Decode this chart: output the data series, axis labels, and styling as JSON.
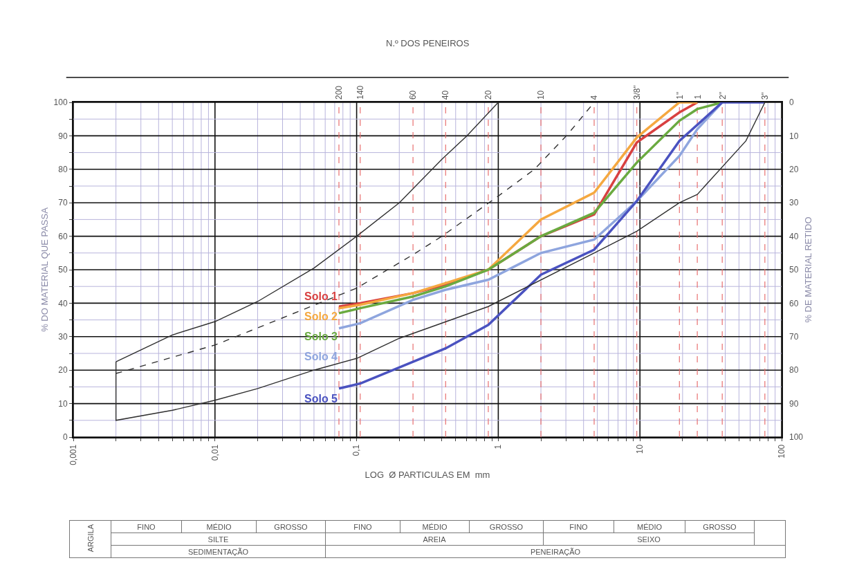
{
  "chart_data": {
    "type": "line",
    "xlabel": "LOG  Ø PARTICULAS EM  mm",
    "ylabel": "% DO MATERIAL QUE PASSA",
    "y2label": "% DE MATERIAL RETIDO",
    "title": "N.º DOS PENEIROS",
    "log": "x",
    "grid": true,
    "legend": false,
    "marker": "none",
    "xlim": [
      0.001,
      100
    ],
    "ylim": [
      0,
      100
    ],
    "y2lim": [
      100,
      0
    ],
    "xticks": [
      {
        "value": 0.001,
        "label": "0,001"
      },
      {
        "value": 0.002,
        "label": null
      },
      {
        "value": 0.003,
        "label": null
      },
      {
        "value": 0.004,
        "label": null
      },
      {
        "value": 0.005,
        "label": null
      },
      {
        "value": 0.006,
        "label": null
      },
      {
        "value": 0.007,
        "label": null
      },
      {
        "value": 0.008,
        "label": null
      },
      {
        "value": 0.009,
        "label": null
      },
      {
        "value": 0.01,
        "label": "0,01"
      },
      {
        "value": 0.02,
        "label": null
      },
      {
        "value": 0.03,
        "label": null
      },
      {
        "value": 0.04,
        "label": null
      },
      {
        "value": 0.05,
        "label": null
      },
      {
        "value": 0.06,
        "label": null
      },
      {
        "value": 0.07,
        "label": null
      },
      {
        "value": 0.08,
        "label": null
      },
      {
        "value": 0.09,
        "label": null
      },
      {
        "value": 0.1,
        "label": "0,1"
      },
      {
        "value": 0.2,
        "label": null
      },
      {
        "value": 0.3,
        "label": null
      },
      {
        "value": 0.4,
        "label": null
      },
      {
        "value": 0.5,
        "label": null
      },
      {
        "value": 0.6,
        "label": null
      },
      {
        "value": 0.7,
        "label": null
      },
      {
        "value": 0.8,
        "label": null
      },
      {
        "value": 0.9,
        "label": null
      },
      {
        "value": 1,
        "label": "1"
      },
      {
        "value": 2,
        "label": null
      },
      {
        "value": 3,
        "label": null
      },
      {
        "value": 4,
        "label": null
      },
      {
        "value": 5,
        "label": null
      },
      {
        "value": 6,
        "label": null
      },
      {
        "value": 7,
        "label": null
      },
      {
        "value": 8,
        "label": null
      },
      {
        "value": 9,
        "label": null
      },
      {
        "value": 10,
        "label": "10"
      },
      {
        "value": 20,
        "label": null
      },
      {
        "value": 30,
        "label": null
      },
      {
        "value": 40,
        "label": null
      },
      {
        "value": 50,
        "label": null
      },
      {
        "value": 60,
        "label": null
      },
      {
        "value": 70,
        "label": null
      },
      {
        "value": 80,
        "label": null
      },
      {
        "value": 90,
        "label": null
      },
      {
        "value": 100,
        "label": "100"
      }
    ],
    "yticks": [
      0,
      {
        "value": 5,
        "label": null
      },
      10,
      {
        "value": 15,
        "label": null
      },
      20,
      {
        "value": 25,
        "label": null
      },
      30,
      {
        "value": 35,
        "label": null
      },
      40,
      {
        "value": 45,
        "label": null
      },
      50,
      {
        "value": 55,
        "label": null
      },
      60,
      {
        "value": 65,
        "label": null
      },
      70,
      {
        "value": 75,
        "label": null
      },
      80,
      {
        "value": 85,
        "label": null
      },
      90,
      {
        "value": 95,
        "label": null
      },
      100
    ],
    "y2ticks": [
      0,
      10,
      20,
      30,
      40,
      50,
      60,
      70,
      80,
      90,
      100
    ],
    "series": [
      {
        "name": "Solo 1",
        "color": "#d84040",
        "x": [
          0.075,
          0.106,
          0.25,
          0.425,
          0.85,
          2,
          4.75,
          9.5,
          19,
          25.4
        ],
        "values": [
          39,
          40,
          43,
          45.5,
          50,
          60,
          66.5,
          88,
          97,
          100
        ]
      },
      {
        "name": "Solo 2",
        "color": "#f5a840",
        "x": [
          0.075,
          0.106,
          0.25,
          0.425,
          0.85,
          2,
          4.75,
          9.5,
          19,
          25.4
        ],
        "values": [
          38.5,
          39.5,
          43,
          46,
          50,
          65,
          73,
          89.5,
          100,
          100
        ]
      },
      {
        "name": "Solo 3",
        "color": "#6aaa40",
        "x": [
          0.075,
          0.106,
          0.25,
          0.425,
          0.85,
          2,
          4.75,
          9.5,
          19,
          25.4,
          38.1
        ],
        "values": [
          37,
          38.5,
          42,
          45,
          50,
          60,
          67,
          82,
          94.5,
          98,
          100
        ]
      },
      {
        "name": "Solo 4",
        "color": "#8ea5de",
        "x": [
          0.075,
          0.106,
          0.25,
          0.425,
          0.85,
          2,
          4.75,
          9.5,
          19,
          25.4,
          38.1
        ],
        "values": [
          32.5,
          34,
          41,
          44,
          47,
          55,
          59,
          70.5,
          84,
          92,
          100
        ]
      },
      {
        "name": "Solo 5",
        "color": "#4a52c0",
        "x": [
          0.075,
          0.106,
          0.25,
          0.425,
          0.85,
          2,
          4.75,
          9.5,
          19,
          38.1,
          76.2
        ],
        "values": [
          14.5,
          16,
          22.5,
          26.5,
          33.5,
          48.5,
          56,
          70.5,
          88.5,
          100,
          100
        ]
      },
      {
        "color": "#303030",
        "x": [
          0.002,
          0.005,
          0.01,
          0.02,
          0.05,
          0.1,
          0.2,
          0.4,
          0.6,
          1
        ],
        "values": [
          22.5,
          30.5,
          34.5,
          40.5,
          50.5,
          60,
          70,
          83,
          90,
          100
        ]
      },
      {
        "color": "#303030",
        "x": [
          0.002,
          0.002,
          0.005,
          0.01,
          0.02,
          0.05,
          0.1,
          0.2,
          0.85,
          4.75,
          9.5,
          19,
          25.4,
          56,
          76.2
        ],
        "values": [
          22.5,
          5,
          8,
          11,
          14.5,
          20,
          23.5,
          29.5,
          39,
          55,
          61.5,
          70,
          72.5,
          88.5,
          100
        ]
      },
      {
        "color": "#303030",
        "line_style": "dashed",
        "x": [
          0.002,
          0.01,
          0.1,
          0.25,
          0.4,
          1,
          1.8,
          3.1,
          4.75
        ],
        "values": [
          19,
          27.5,
          44.5,
          54.5,
          60,
          72,
          80,
          90.5,
          100
        ]
      }
    ],
    "ref_lines": [
      {
        "axis": "x",
        "value": 0.075,
        "color": "#e87070",
        "line_style": "dashed"
      },
      {
        "axis": "x",
        "value": 0.106,
        "color": "#e87070",
        "line_style": "dashed"
      },
      {
        "axis": "x",
        "value": 0.25,
        "color": "#e87070",
        "line_style": "dashed"
      },
      {
        "axis": "x",
        "value": 0.425,
        "color": "#e87070",
        "line_style": "dashed"
      },
      {
        "axis": "x",
        "value": 0.85,
        "color": "#e87070",
        "line_style": "dashed"
      },
      {
        "axis": "x",
        "value": 2,
        "color": "#e87070",
        "line_style": "dashed"
      },
      {
        "axis": "x",
        "value": 4.75,
        "color": "#e87070",
        "line_style": "dashed"
      },
      {
        "axis": "x",
        "value": 9.5,
        "color": "#e87070",
        "line_style": "dashed"
      },
      {
        "axis": "x",
        "value": 19,
        "color": "#e87070",
        "line_style": "dashed"
      },
      {
        "axis": "x",
        "value": 25.4,
        "color": "#e87070",
        "line_style": "dashed"
      },
      {
        "axis": "x",
        "value": 38.1,
        "color": "#e87070",
        "line_style": "dashed"
      },
      {
        "axis": "x",
        "value": 76.2,
        "color": "#e87070",
        "line_style": "dashed"
      }
    ],
    "annotations": [
      {
        "text": "200",
        "x": 0.075,
        "y": 100
      },
      {
        "text": "140",
        "x": 0.106,
        "y": 100
      },
      {
        "text": "60",
        "x": 0.25,
        "y": 100
      },
      {
        "text": "40",
        "x": 0.425,
        "y": 100
      },
      {
        "text": "20",
        "x": 0.85,
        "y": 100
      },
      {
        "text": "10",
        "x": 2,
        "y": 100
      },
      {
        "text": "4",
        "x": 4.75,
        "y": 100
      },
      {
        "text": "3/8\"",
        "x": 9.5,
        "y": 100
      },
      {
        "text": "1\"",
        "x": 19,
        "y": 100
      },
      {
        "text": "1",
        "x": 25.4,
        "y": 100
      },
      {
        "text": "2\"",
        "x": 38.1,
        "y": 100
      },
      {
        "text": "3\"",
        "x": 76.2,
        "y": 100
      },
      "ARGILA",
      "FINO",
      "MÉDIO",
      "GROSSO",
      "FINO",
      "MÉDIO",
      "GROSSO",
      "FINO",
      "MÉDIO",
      "GROSSO",
      "SILTE",
      "AREIA",
      "SEIXO",
      "SEDIMENTAÇÃO",
      "PENEIRAÇÃO"
    ]
  }
}
